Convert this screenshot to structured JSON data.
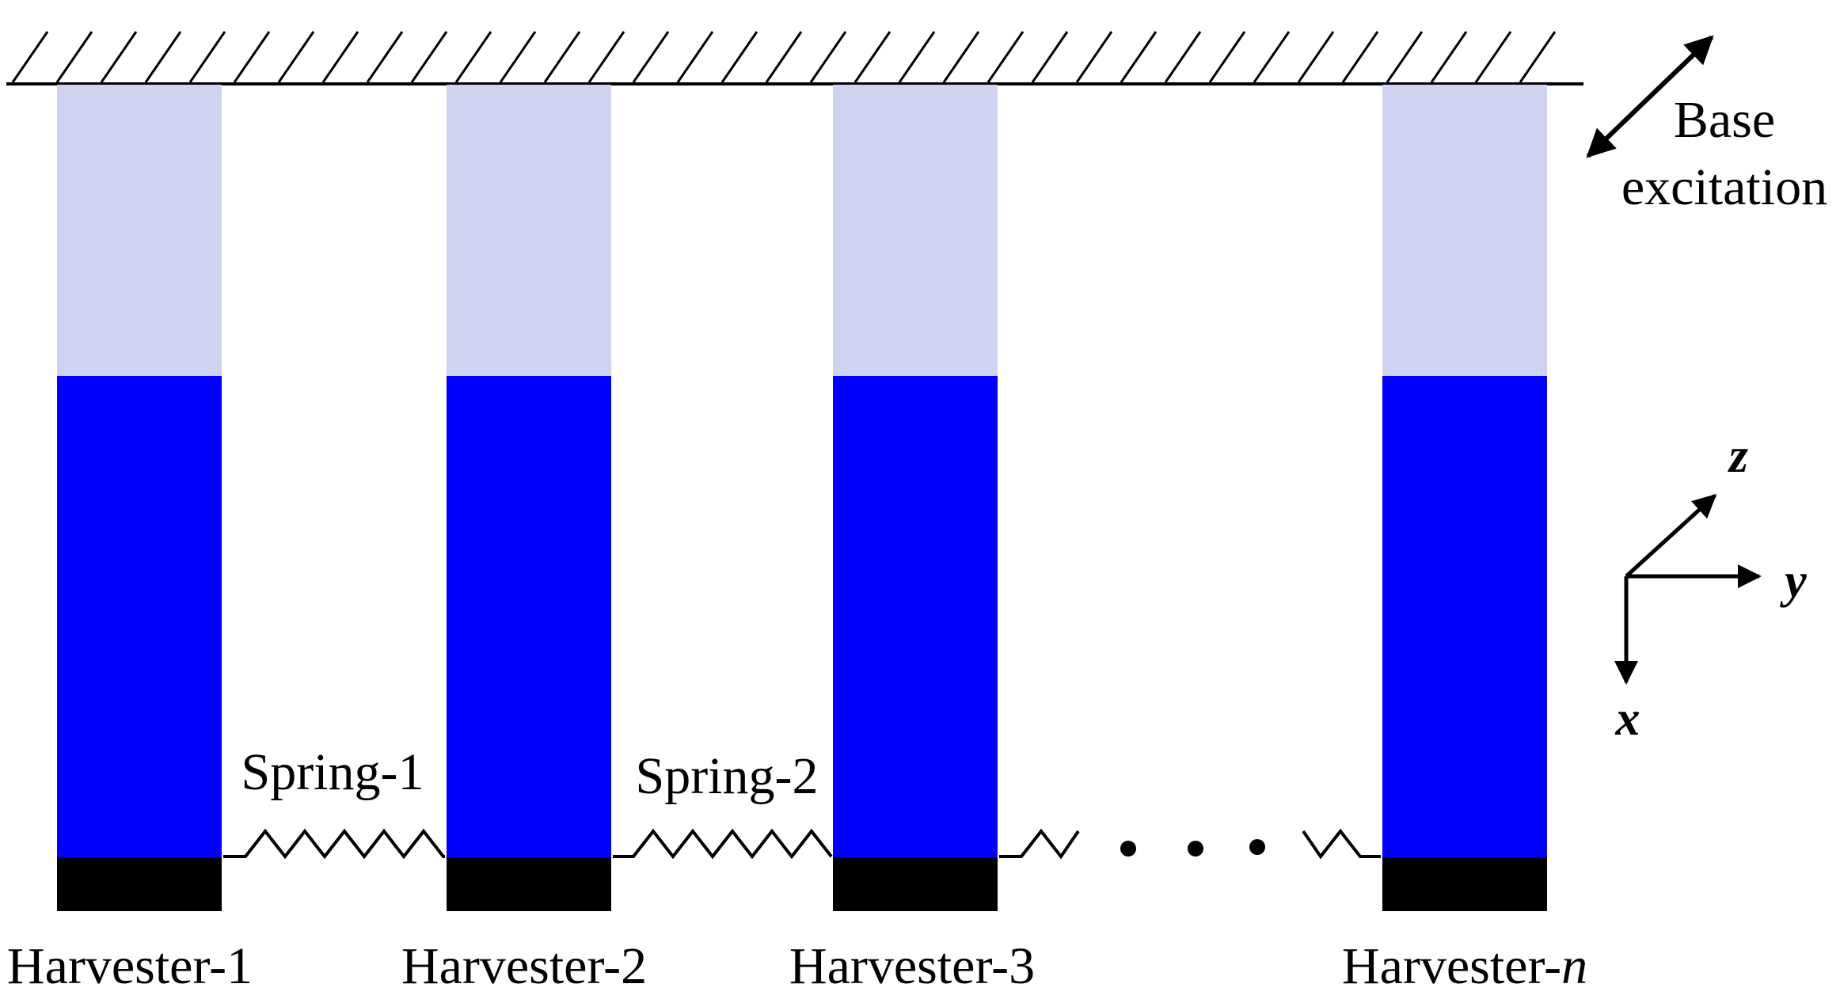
{
  "diagram": {
    "harvesters": [
      {
        "id": "h1",
        "label": "Harvester-1"
      },
      {
        "id": "h2",
        "label": "Harvester-2"
      },
      {
        "id": "h3",
        "label": "Harvester-3"
      },
      {
        "id": "hn",
        "label_prefix": "Harvester-",
        "label_suffix": "n"
      }
    ],
    "springs": [
      {
        "id": "s1",
        "label": "Spring-1"
      },
      {
        "id": "s2",
        "label": "Spring-2"
      }
    ],
    "base_excitation": {
      "line1": "Base",
      "line2": "excitation"
    },
    "axes": {
      "x": "x",
      "y": "y",
      "z": "z"
    },
    "colors": {
      "substrate": "#d0d3ef",
      "piezo": "#0000ff",
      "tip_mass": "#000000",
      "line": "#000000"
    }
  }
}
